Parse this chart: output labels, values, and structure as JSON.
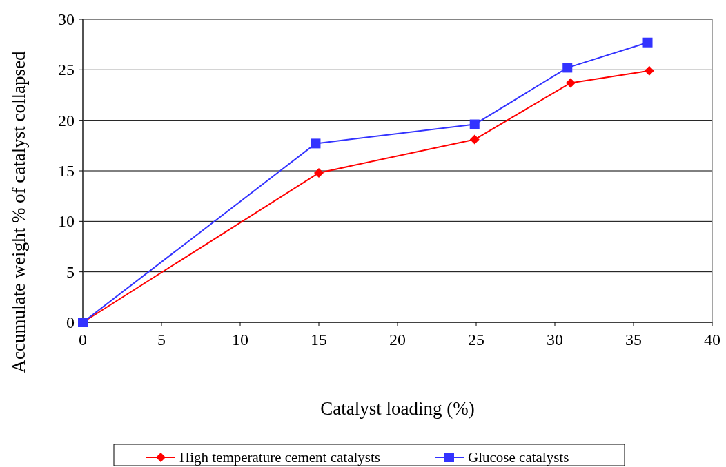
{
  "chart_data": {
    "type": "line",
    "xlabel": "Catalyst loading (%)",
    "ylabel": "Accumulate weight % of catalyst collapsed",
    "xlim": [
      0,
      40
    ],
    "xticks": [
      0,
      5,
      10,
      15,
      20,
      25,
      30,
      35,
      40
    ],
    "ylim": [
      0,
      30
    ],
    "yticks": [
      0,
      5,
      10,
      15,
      20,
      25,
      30
    ],
    "grid": "y",
    "legend": "bottom",
    "series": [
      {
        "name": "High temperature cement catalysts",
        "color": "#ff0000",
        "marker": "diamond",
        "x": [
          0,
          15,
          24.9,
          31,
          36
        ],
        "values": [
          0,
          14.8,
          18.1,
          23.7,
          24.9
        ]
      },
      {
        "name": "Glucose catalysts",
        "color": "#3333ff",
        "marker": "square",
        "x": [
          0,
          14.8,
          24.9,
          30.8,
          35.9
        ],
        "values": [
          0,
          17.7,
          19.6,
          25.2,
          27.7
        ]
      }
    ]
  }
}
